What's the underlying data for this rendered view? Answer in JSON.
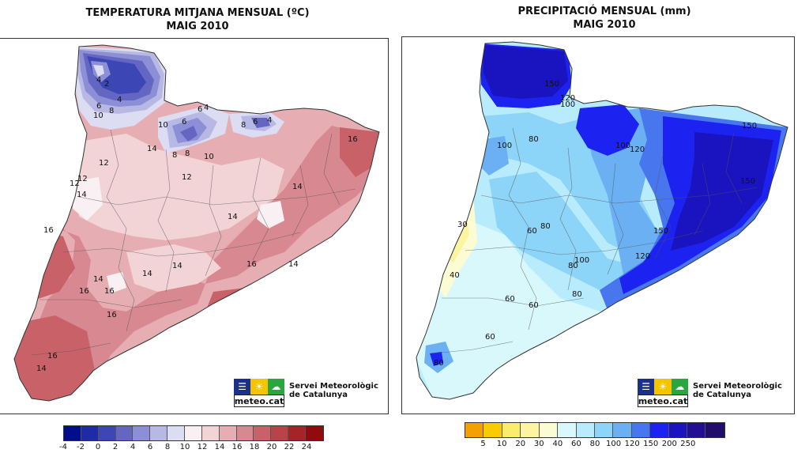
{
  "temperature_map": {
    "title_line1": "TEMPERATURA MITJANA MENSUAL (ºC)",
    "title_line2": "MAIG 2010",
    "contour_labels": [
      "16",
      "14",
      "12",
      "14",
      "12",
      "10",
      "8",
      "6",
      "4",
      "4",
      "2",
      "10",
      "6",
      "8",
      "6",
      "4",
      "8",
      "6",
      "4",
      "10",
      "8",
      "12",
      "14",
      "14",
      "16",
      "16",
      "14",
      "14",
      "14",
      "16",
      "16",
      "16",
      "14",
      "16",
      "14",
      "12"
    ],
    "legend_colors": [
      "#000e8c",
      "#1d2ba6",
      "#3c46b4",
      "#6466c2",
      "#8c8ed6",
      "#b8b8e4",
      "#dcdcf2",
      "#f8f0f2",
      "#f2d4d6",
      "#e6aeb2",
      "#d88890",
      "#c86268",
      "#b8444a",
      "#a42428",
      "#900a0e"
    ],
    "legend_ticks": [
      "-4",
      "-2",
      "0",
      "2",
      "4",
      "6",
      "8",
      "10",
      "12",
      "14",
      "16",
      "18",
      "20",
      "22",
      "24"
    ]
  },
  "precipitation_map": {
    "title_line1": "PRECIPITACIÓ MENSUAL (mm)",
    "title_line2": "MAIG 2010",
    "contour_labels": [
      "150",
      "120",
      "100",
      "100",
      "80",
      "100",
      "120",
      "150",
      "150",
      "30",
      "60",
      "80",
      "80",
      "100",
      "150",
      "120",
      "40",
      "60",
      "80",
      "60",
      "60",
      "80"
    ],
    "legend_colors": [
      "#f4a000",
      "#f8cc00",
      "#fcec6c",
      "#fcf4a0",
      "#fcfcd4",
      "#d8f8fc",
      "#b8ecfc",
      "#8cd4f8",
      "#6cb0f4",
      "#4876ee",
      "#1c22f0",
      "#1a14c0",
      "#221094",
      "#220c6c"
    ],
    "legend_ticks": [
      "5",
      "10",
      "20",
      "30",
      "40",
      "60",
      "80",
      "100",
      "120",
      "150",
      "200",
      "250"
    ]
  },
  "logo": {
    "brand": "meteo.cat",
    "org_line1": "Servei Meteorològic",
    "org_line2": "de Catalunya"
  }
}
